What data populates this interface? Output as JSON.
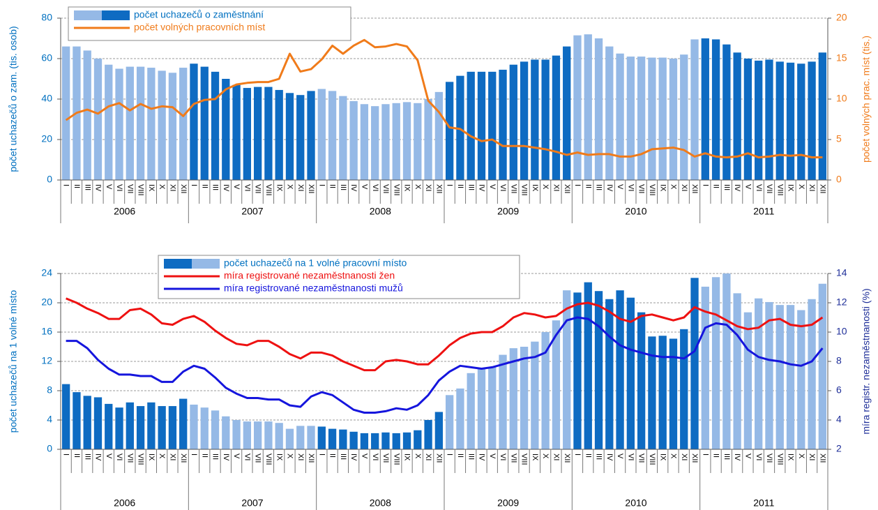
{
  "chart_data": [
    {
      "type": "bar",
      "categories": [
        "I",
        "II",
        "III",
        "IV",
        "V",
        "VI",
        "VII",
        "VIII",
        "IX",
        "X",
        "XI",
        "XII",
        "I",
        "II",
        "III",
        "IV",
        "V",
        "VI",
        "VII",
        "VIII",
        "IX",
        "X",
        "XI",
        "XII",
        "I",
        "II",
        "III",
        "IV",
        "V",
        "VI",
        "VII",
        "VIII",
        "IX",
        "X",
        "XI",
        "XII",
        "I",
        "II",
        "III",
        "IV",
        "V",
        "VI",
        "VII",
        "VIII",
        "IX",
        "X",
        "XI",
        "XII",
        "I",
        "II",
        "III",
        "IV",
        "V",
        "VI",
        "VII",
        "VIII",
        "IX",
        "X",
        "XI",
        "XII",
        "I",
        "II",
        "III",
        "IV",
        "V",
        "VI",
        "VII",
        "VIII",
        "IX",
        "X",
        "XI",
        "XII"
      ],
      "years": [
        "2006",
        "2007",
        "2008",
        "2009",
        "2010",
        "2011"
      ],
      "ylabel": "počet uchazečů o zam. (tis. osob)",
      "y2label": "počet volných prac. míst (tis.)",
      "ylim": [
        0,
        80
      ],
      "yticks": [
        0,
        20,
        40,
        60,
        80
      ],
      "y2lim": [
        0,
        20
      ],
      "y2ticks": [
        0,
        5,
        10,
        15,
        20
      ],
      "y_color": "#0070c0",
      "y2_color": "#f07b1a",
      "grid": true,
      "series": [
        {
          "name": "počet uchazečů o zaměstnání",
          "type": "bar",
          "colors": [
            "#95b9e6",
            "#0e6bc2"
          ],
          "values": [
            66,
            66,
            64,
            60,
            57,
            55,
            56,
            56,
            55.5,
            54,
            53,
            55.5,
            57.5,
            56,
            53.5,
            50,
            47,
            45.5,
            46,
            46,
            44.5,
            43,
            42,
            44,
            45,
            44,
            41.5,
            39,
            37.5,
            36.5,
            37.5,
            38,
            38.5,
            38,
            40,
            43.5,
            48.5,
            51.5,
            53.5,
            53.5,
            53.5,
            54.5,
            57,
            58.5,
            59.5,
            59.5,
            61.5,
            66,
            71.5,
            72,
            70,
            66,
            62.5,
            61,
            61,
            60.5,
            60.5,
            60,
            62,
            69.5,
            70,
            69.5,
            67,
            63,
            60,
            59,
            59.5,
            58.5,
            58,
            57.5,
            58.5,
            63
          ]
        },
        {
          "name": "počet volných pracovních míst",
          "type": "line",
          "color": "#f07b1a",
          "axis": "y2",
          "values": [
            7.4,
            8.3,
            8.7,
            8.2,
            9.1,
            9.5,
            8.6,
            9.4,
            8.8,
            9.1,
            9.0,
            7.9,
            9.4,
            9.9,
            10.0,
            11.2,
            11.8,
            12.0,
            12.1,
            12.1,
            12.5,
            15.6,
            13.4,
            13.7,
            14.9,
            16.6,
            15.6,
            16.6,
            17.3,
            16.4,
            16.5,
            16.8,
            16.5,
            14.8,
            9.8,
            8.4,
            6.5,
            6.3,
            5.4,
            4.8,
            5.0,
            4.2,
            4.2,
            4.2,
            4.0,
            3.8,
            3.5,
            3.1,
            3.4,
            3.1,
            3.2,
            3.2,
            2.9,
            2.9,
            3.2,
            3.8,
            3.9,
            4.0,
            3.7,
            2.9,
            3.3,
            2.9,
            2.8,
            2.9,
            3.3,
            2.8,
            2.9,
            3.1,
            3.0,
            3.1,
            2.8,
            2.8
          ]
        }
      ]
    },
    {
      "type": "bar",
      "categories": [
        "I",
        "II",
        "III",
        "IV",
        "V",
        "VI",
        "VII",
        "VIII",
        "IX",
        "X",
        "XI",
        "XII",
        "I",
        "II",
        "III",
        "IV",
        "V",
        "VI",
        "VII",
        "VIII",
        "IX",
        "X",
        "XI",
        "XII",
        "I",
        "II",
        "III",
        "IV",
        "V",
        "VI",
        "VII",
        "VIII",
        "IX",
        "X",
        "XI",
        "XII",
        "I",
        "II",
        "III",
        "IV",
        "V",
        "VI",
        "VII",
        "VIII",
        "IX",
        "X",
        "XI",
        "XII",
        "I",
        "II",
        "III",
        "IV",
        "V",
        "VI",
        "VII",
        "VIII",
        "IX",
        "X",
        "XI",
        "XII",
        "I",
        "II",
        "III",
        "IV",
        "V",
        "VI",
        "VII",
        "VIII",
        "IX",
        "X",
        "XI",
        "XII"
      ],
      "years": [
        "2006",
        "2007",
        "2008",
        "2009",
        "2010",
        "2011"
      ],
      "ylabel": "počet uchazečů na 1 volné místo",
      "y2label": "míra registr. nezaměstnanosti  (%)",
      "ylim": [
        0,
        24
      ],
      "yticks": [
        0,
        4,
        8,
        12,
        16,
        20,
        24
      ],
      "y2lim": [
        2,
        14
      ],
      "y2ticks": [
        2,
        4,
        6,
        8,
        10,
        12,
        14
      ],
      "y_color": "#0070c0",
      "y2_color": "#1f2f99",
      "grid": true,
      "series": [
        {
          "name": "počet uchazečů na 1 volné pracovní místo",
          "type": "bar",
          "colors": [
            "#0e6bc2",
            "#95b9e6"
          ],
          "values": [
            8.9,
            7.8,
            7.3,
            7.1,
            6.2,
            5.7,
            6.4,
            5.9,
            6.4,
            5.9,
            5.9,
            6.9,
            6.1,
            5.7,
            5.3,
            4.5,
            4.0,
            3.8,
            3.8,
            3.8,
            3.6,
            2.8,
            3.2,
            3.2,
            3.1,
            2.8,
            2.7,
            2.4,
            2.2,
            2.2,
            2.3,
            2.2,
            2.3,
            2.6,
            4.0,
            5.1,
            7.4,
            8.3,
            10.4,
            11.0,
            11.2,
            12.9,
            13.8,
            14.0,
            14.7,
            16.0,
            17.6,
            21.7,
            21.4,
            22.8,
            21.6,
            20.5,
            21.7,
            20.7,
            18.7,
            15.4,
            15.5,
            15.1,
            16.4,
            23.4,
            22.2,
            23.5,
            24.0,
            21.3,
            18.7,
            20.6,
            20.1,
            19.7,
            19.7,
            19.0,
            20.5,
            22.6
          ]
        },
        {
          "name": "míra registrované nezaměstnanosti žen",
          "type": "line",
          "color": "#ee1111",
          "axis": "y2",
          "values": [
            12.3,
            12.0,
            11.6,
            11.3,
            10.9,
            10.9,
            11.5,
            11.6,
            11.2,
            10.6,
            10.5,
            10.9,
            11.1,
            10.7,
            10.1,
            9.6,
            9.2,
            9.1,
            9.4,
            9.4,
            9.0,
            8.5,
            8.2,
            8.6,
            8.6,
            8.4,
            8.0,
            7.7,
            7.4,
            7.4,
            8.0,
            8.1,
            8.0,
            7.8,
            7.8,
            8.4,
            9.1,
            9.6,
            9.9,
            10.0,
            10.0,
            10.4,
            11.0,
            11.3,
            11.2,
            11.0,
            11.1,
            11.6,
            11.9,
            12.0,
            11.8,
            11.4,
            10.9,
            10.7,
            11.1,
            11.2,
            11.0,
            10.8,
            11.0,
            11.7,
            11.4,
            11.2,
            10.8,
            10.4,
            10.2,
            10.3,
            10.8,
            10.9,
            10.5,
            10.4,
            10.5,
            11.0
          ]
        },
        {
          "name": "míra registrované nezaměstnanosti mužů",
          "type": "line",
          "color": "#1515dd",
          "axis": "y2",
          "values": [
            9.4,
            9.4,
            8.9,
            8.1,
            7.5,
            7.1,
            7.1,
            7.0,
            7.0,
            6.6,
            6.6,
            7.3,
            7.7,
            7.5,
            6.9,
            6.2,
            5.8,
            5.5,
            5.5,
            5.4,
            5.4,
            5.0,
            4.9,
            5.6,
            5.9,
            5.7,
            5.2,
            4.7,
            4.5,
            4.5,
            4.6,
            4.8,
            4.7,
            5.0,
            5.7,
            6.7,
            7.3,
            7.7,
            7.6,
            7.5,
            7.6,
            7.8,
            8.0,
            8.2,
            8.3,
            8.6,
            9.8,
            10.8,
            11.0,
            10.9,
            10.4,
            9.7,
            9.1,
            8.8,
            8.6,
            8.4,
            8.3,
            8.3,
            8.2,
            8.7,
            10.3,
            10.6,
            10.5,
            9.8,
            8.8,
            8.3,
            8.1,
            8.0,
            7.8,
            7.7,
            8.0,
            8.9
          ]
        }
      ]
    }
  ]
}
